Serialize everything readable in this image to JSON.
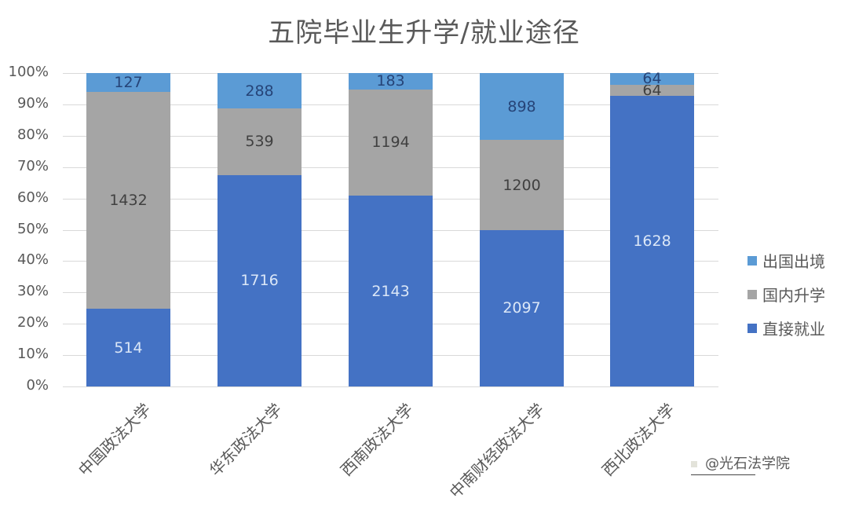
{
  "title": "五院毕业生升学/就业途径",
  "colors": {
    "abroad": "#5b9bd5",
    "domestic": "#a5a5a5",
    "employ": "#4472c4"
  },
  "legend": [
    {
      "label": "出国出境",
      "color": "#5b9bd5"
    },
    {
      "label": "国内升学",
      "color": "#a5a5a5"
    },
    {
      "label": "直接就业",
      "color": "#4472c4"
    }
  ],
  "y_ticks": [
    "100%",
    "90%",
    "80%",
    "70%",
    "60%",
    "50%",
    "40%",
    "30%",
    "20%",
    "10%",
    "0%"
  ],
  "watermark": "@光石法学院",
  "chart_data": {
    "type": "bar",
    "stacked": "percent",
    "title": "五院毕业生升学/就业途径",
    "xlabel": "",
    "ylabel": "",
    "ylim": [
      0,
      1
    ],
    "grid": true,
    "legend_position": "right",
    "categories": [
      "中国政法大学",
      "华东政法大学",
      "西南政法大学",
      "中南财经政法大学",
      "西北政法大学"
    ],
    "series": [
      {
        "name": "直接就业",
        "values": [
          514,
          1716,
          2143,
          2097,
          1628
        ]
      },
      {
        "name": "国内升学",
        "values": [
          1432,
          539,
          1194,
          1200,
          64
        ]
      },
      {
        "name": "出国出境",
        "values": [
          127,
          288,
          183,
          898,
          64
        ]
      }
    ]
  }
}
